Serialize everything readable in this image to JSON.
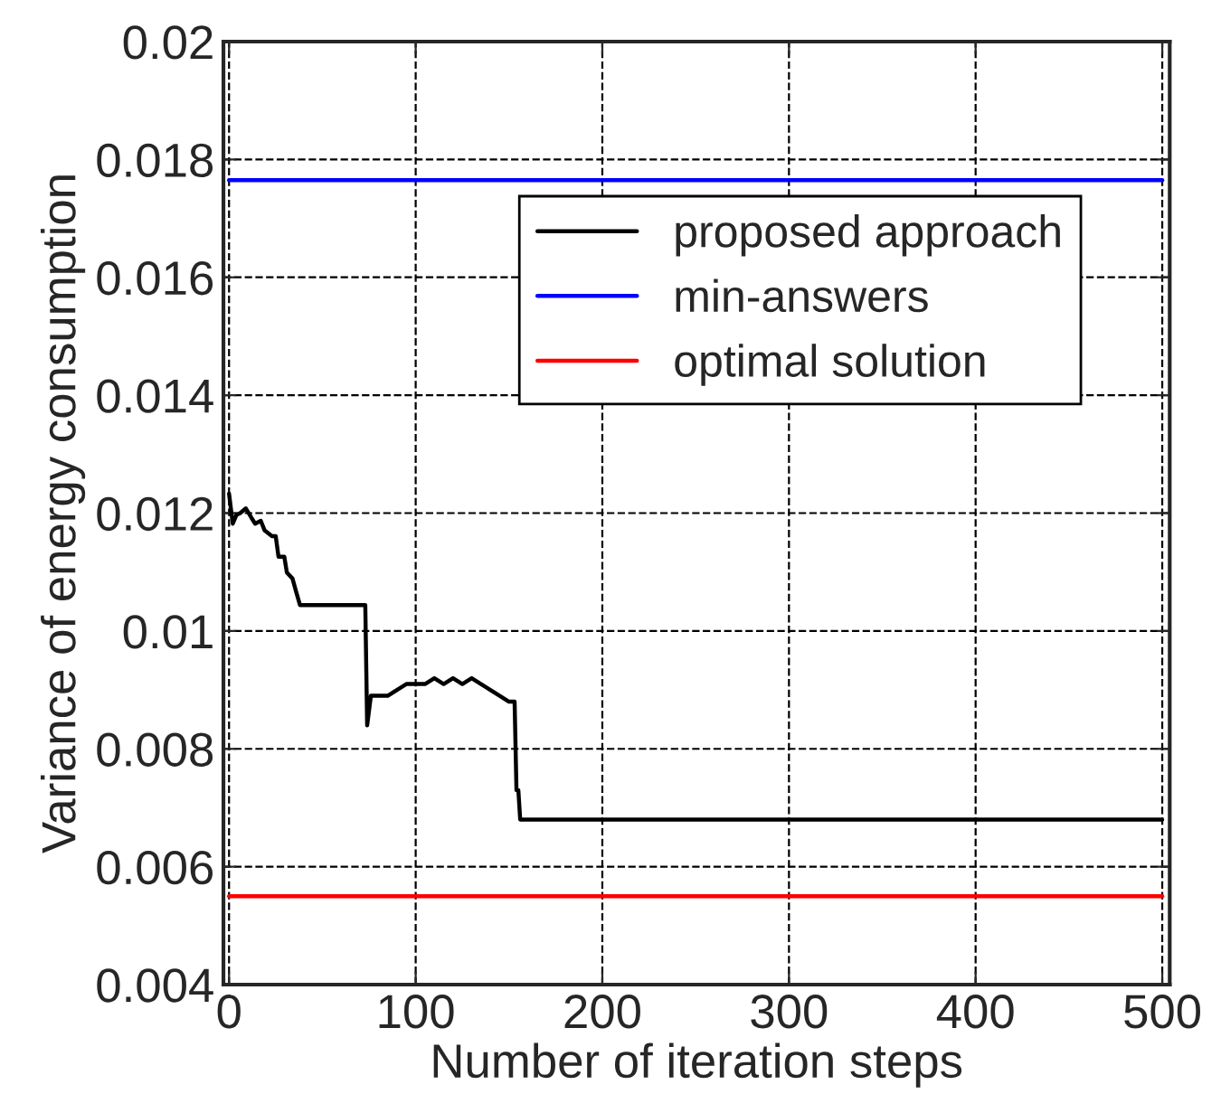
{
  "chart_data": {
    "type": "line",
    "xlabel": "Number of iteration steps",
    "ylabel": "Variance of energy consumption",
    "xlim": [
      -3,
      504
    ],
    "ylim": [
      0.004,
      0.02
    ],
    "xticks": [
      0,
      100,
      200,
      300,
      400,
      500
    ],
    "yticks": [
      {
        "value": 0.004,
        "label": "0.004"
      },
      {
        "value": 0.006,
        "label": "0.006"
      },
      {
        "value": 0.008,
        "label": "0.008"
      },
      {
        "value": 0.01,
        "label": "0.01"
      },
      {
        "value": 0.012,
        "label": "0.012"
      },
      {
        "value": 0.014,
        "label": "0.014"
      },
      {
        "value": 0.016,
        "label": "0.016"
      },
      {
        "value": 0.018,
        "label": "0.018"
      },
      {
        "value": 0.02,
        "label": "0.02"
      }
    ],
    "grid": true,
    "legend": "top right",
    "line_style": "solid",
    "series": [
      {
        "name": "proposed approach",
        "color": "#000000",
        "x": [
          0,
          2,
          4,
          6,
          9,
          12,
          14,
          17,
          19,
          23,
          25,
          26.5,
          29.6,
          31,
          34,
          36,
          38,
          73,
          74,
          76,
          85,
          90,
          95,
          100,
          105,
          110,
          115,
          120,
          125,
          130,
          135,
          140,
          145,
          150,
          153,
          154,
          155,
          156,
          500
        ],
        "values": [
          0.01233,
          0.01182,
          0.01197,
          0.012,
          0.01208,
          0.01192,
          0.01182,
          0.01187,
          0.01171,
          0.01161,
          0.01161,
          0.01126,
          0.01126,
          0.01099,
          0.01089,
          0.01066,
          0.01044,
          0.01044,
          0.0084,
          0.0089,
          0.0089,
          0.009,
          0.0091,
          0.0091,
          0.0091,
          0.0092,
          0.0091,
          0.0092,
          0.0091,
          0.0092,
          0.0091,
          0.009,
          0.0089,
          0.0088,
          0.0088,
          0.0073,
          0.0073,
          0.0068,
          0.0068
        ]
      },
      {
        "name": "min-answers",
        "color": "#0000ff",
        "x": [
          0,
          500
        ],
        "values": [
          0.01765,
          0.01765
        ]
      },
      {
        "name": "optimal solution",
        "color": "#ff0000",
        "x": [
          0,
          500
        ],
        "values": [
          0.0055,
          0.0055
        ]
      }
    ]
  }
}
